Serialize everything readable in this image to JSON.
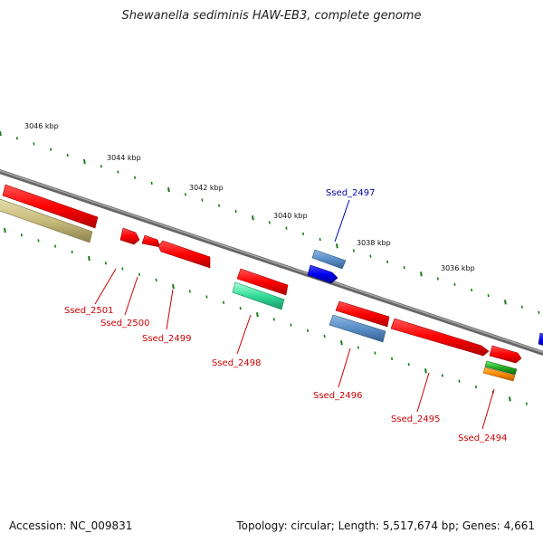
{
  "title": "Shewanella sediminis HAW-EB3, complete genome",
  "footer": {
    "accession": "Accession: NC_009831",
    "summary": "Topology: circular; Length: 5,517,674 bp; Genes: 4,661"
  },
  "scale": {
    "labels": [
      "3046 kbp",
      "3044 kbp",
      "3042 kbp",
      "3040 kbp",
      "3038 kbp",
      "3036 kbp"
    ]
  },
  "genes": [
    {
      "label": "Ssed_2501",
      "color": "#cc0000"
    },
    {
      "label": "Ssed_2500",
      "color": "#cc0000"
    },
    {
      "label": "Ssed_2499",
      "color": "#cc0000"
    },
    {
      "label": "Ssed_2498",
      "color": "#cc0000"
    },
    {
      "label": "Ssed_2497",
      "color": "#0000aa"
    },
    {
      "label": "Ssed_2496",
      "color": "#cc0000"
    },
    {
      "label": "Ssed_2495",
      "color": "#cc0000"
    },
    {
      "label": "Ssed_2494",
      "color": "#cc0000"
    }
  ],
  "colors": {
    "backbone": "#808080",
    "tick": "#1a7a1a",
    "cds_forward": "#ff0000",
    "cds_reverse": "#ff0000",
    "blue_feature": "#5a8ec8",
    "navy_feature": "#0000ee",
    "teal_feature": "#33dd99",
    "olive_feature": "#c8bb7a",
    "green_feature": "#22aa22",
    "orange_feature": "#ff8800"
  }
}
